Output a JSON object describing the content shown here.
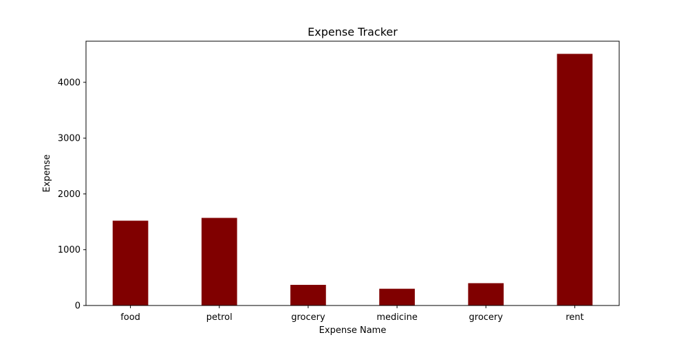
{
  "chart_data": {
    "type": "bar",
    "title": "Expense Tracker",
    "xlabel": "Expense Name",
    "ylabel": "Expense",
    "categories": [
      "food",
      "petrol",
      "grocery",
      "medicine",
      "grocery",
      "rent"
    ],
    "values": [
      1520,
      1570,
      370,
      300,
      400,
      4510
    ],
    "ylim": [
      0,
      4737
    ],
    "yticks": [
      0,
      1000,
      2000,
      3000,
      4000
    ],
    "bar_color": "#800000",
    "grid": false,
    "legend": "none"
  }
}
